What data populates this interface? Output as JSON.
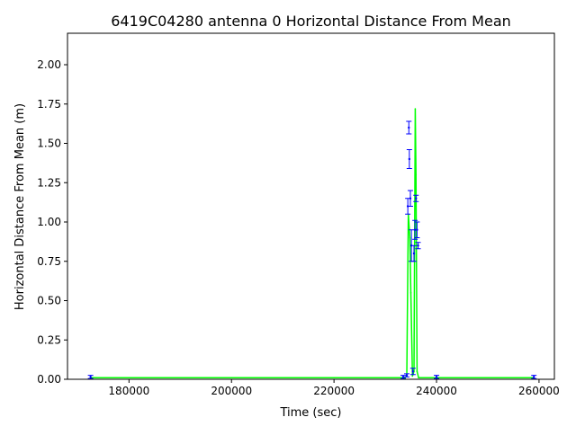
{
  "chart_data": {
    "type": "line",
    "title": "6419C04280 antenna 0 Horizontal Distance From Mean",
    "xlabel": "Time (sec)",
    "ylabel": "Horizontal Distance From Mean (m)",
    "xlim": [
      168000,
      263000
    ],
    "ylim": [
      0.0,
      2.2
    ],
    "xticks": [
      180000,
      200000,
      220000,
      240000,
      260000
    ],
    "xtick_labels": [
      "180000",
      "200000",
      "220000",
      "240000",
      "260000"
    ],
    "yticks": [
      0.0,
      0.25,
      0.5,
      0.75,
      1.0,
      1.25,
      1.5,
      1.75,
      2.0
    ],
    "ytick_labels": [
      "0.00",
      "0.25",
      "0.50",
      "0.75",
      "1.00",
      "1.25",
      "1.50",
      "1.75",
      "2.00"
    ],
    "grid": false,
    "colors": {
      "line": "#00ff00",
      "errorbar": "#0000ff"
    },
    "series": [
      {
        "role": "distance",
        "x": [
          172500,
          200000,
          230000,
          233800,
          234200,
          234500,
          234800,
          235000,
          235300,
          235600,
          235850,
          236000,
          236200,
          236500,
          240000,
          259000
        ],
        "values": [
          0.01,
          0.01,
          0.01,
          0.01,
          0.02,
          1.05,
          0.9,
          0.55,
          0.02,
          0.05,
          1.72,
          1.3,
          0.05,
          0.01,
          0.01,
          0.01
        ]
      },
      {
        "role": "uncertainty",
        "x": [
          172500,
          233500,
          234200,
          234400,
          234600,
          234700,
          234900,
          235100,
          235400,
          235600,
          235800,
          236000,
          236200,
          236400,
          240000,
          259000
        ],
        "values": [
          0.015,
          0.015,
          0.025,
          1.1,
          1.6,
          1.4,
          1.15,
          0.85,
          0.05,
          0.8,
          0.95,
          1.15,
          0.95,
          0.85,
          0.015,
          0.015
        ],
        "errors": [
          0.01,
          0.01,
          0.01,
          0.05,
          0.04,
          0.06,
          0.05,
          0.1,
          0.02,
          0.05,
          0.06,
          0.02,
          0.05,
          0.02,
          0.01,
          0.01
        ]
      }
    ]
  }
}
